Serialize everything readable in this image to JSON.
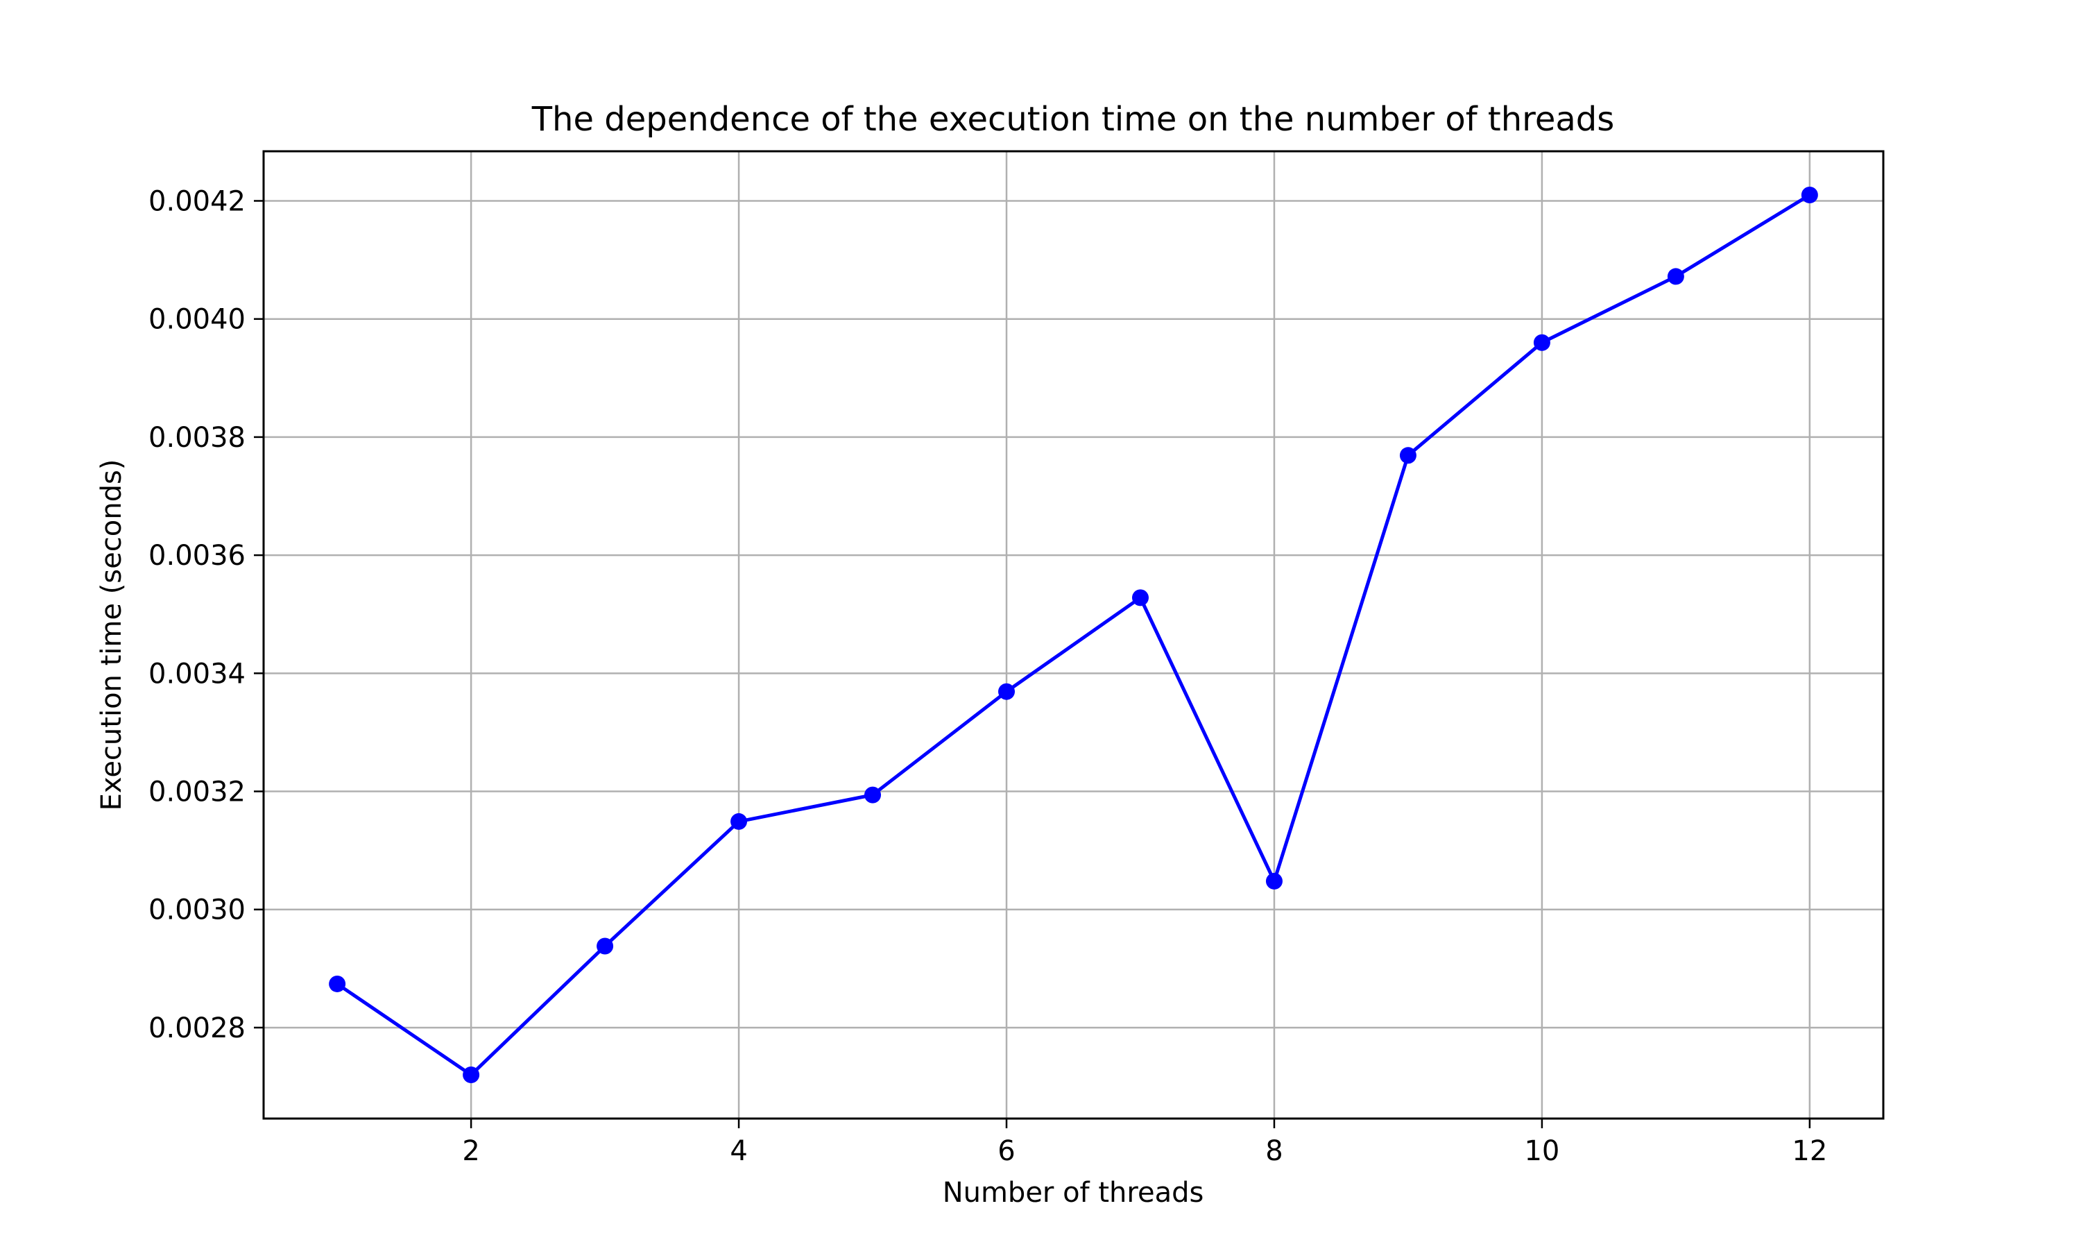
{
  "chart_data": {
    "type": "line",
    "title": "The dependence of the execution time on the number of threads",
    "xlabel": "Number of threads",
    "ylabel": "Execution time (seconds)",
    "x": [
      1,
      2,
      3,
      4,
      5,
      6,
      7,
      8,
      9,
      10,
      11,
      12
    ],
    "series": [
      {
        "values": [
          0.002874,
          0.00272,
          0.002938,
          0.003149,
          0.003194,
          0.003369,
          0.003528,
          0.003048,
          0.003769,
          0.00396,
          0.004072,
          0.00421
        ],
        "color": "#0000ff",
        "marker": "circle"
      }
    ],
    "xlim": [
      0.45,
      12.55
    ],
    "ylim": [
      0.002646,
      0.004284
    ],
    "x_ticks": [
      2,
      4,
      6,
      8,
      10,
      12
    ],
    "x_tick_labels": [
      "2",
      "4",
      "6",
      "8",
      "10",
      "12"
    ],
    "y_ticks": [
      0.0028,
      0.003,
      0.0032,
      0.0034,
      0.0036,
      0.0038,
      0.004,
      0.0042
    ],
    "y_tick_labels": [
      "0.0028",
      "0.0030",
      "0.0032",
      "0.0034",
      "0.0036",
      "0.0038",
      "0.0040",
      "0.0042"
    ],
    "grid": true,
    "legend": "none"
  }
}
